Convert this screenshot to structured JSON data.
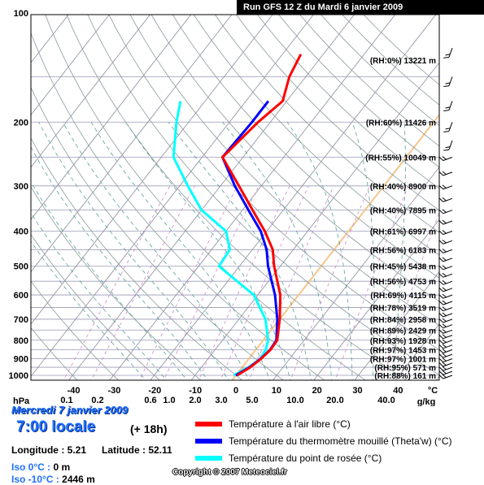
{
  "header": {
    "title": "Run GFS 12 Z du Mardi 6 janvier 2009"
  },
  "chart_data": {
    "type": "line",
    "title": "Run GFS 12 Z du Mardi 6 janvier 2009",
    "pressure_ticks": [
      "100",
      "200",
      "300",
      "400",
      "500",
      "600",
      "700",
      "800",
      "900",
      "1000"
    ],
    "temperature_ticks": [
      "-40",
      "-30",
      "-20",
      "-10",
      "0",
      "10",
      "20",
      "30",
      "40"
    ],
    "mixing_ratio_ticks": [
      "0.1",
      "0.2",
      "0.6",
      "1.0",
      "2.0",
      "3.0",
      "5.0",
      "10.0",
      "20.0",
      "40.0"
    ],
    "xlabel_left": "hPa",
    "xlabel_temp": "°C",
    "xlabel_mix": "g/kg",
    "series": [
      {
        "name": "Température à l'air libre (°C)",
        "color": "#ff0000",
        "points": [
          [
            1000,
            0.3
          ],
          [
            950,
            2.0
          ],
          [
            900,
            3.0
          ],
          [
            850,
            3.6
          ],
          [
            800,
            3.4
          ],
          [
            700,
            0.0
          ],
          [
            600,
            -4.5
          ],
          [
            500,
            -11.5
          ],
          [
            450,
            -15.0
          ],
          [
            400,
            -20.5
          ],
          [
            350,
            -27.5
          ],
          [
            300,
            -35.5
          ],
          [
            250,
            -45.0
          ],
          [
            200,
            -43.0
          ],
          [
            175,
            -41.0
          ],
          [
            150,
            -44.0
          ],
          [
            130,
            -45.5
          ]
        ]
      },
      {
        "name": "Température du thermomètre mouillé (Theta'w) (°C)",
        "color": "#0000ff",
        "points": [
          [
            1000,
            0.0
          ],
          [
            950,
            1.8
          ],
          [
            900,
            2.9
          ],
          [
            850,
            3.5
          ],
          [
            800,
            3.2
          ],
          [
            700,
            -0.6
          ],
          [
            600,
            -5.8
          ],
          [
            500,
            -13.0
          ],
          [
            450,
            -16.5
          ],
          [
            400,
            -21.5
          ],
          [
            350,
            -28.5
          ],
          [
            300,
            -36.5
          ],
          [
            250,
            -45.0
          ],
          [
            200,
            -44.5
          ],
          [
            175,
            -44.5
          ]
        ]
      },
      {
        "name": "Température du point de rosée (°C)",
        "color": "#00ffff",
        "points": [
          [
            1000,
            -0.5
          ],
          [
            950,
            1.6
          ],
          [
            900,
            2.8
          ],
          [
            850,
            2.4
          ],
          [
            800,
            1.2
          ],
          [
            700,
            -3.5
          ],
          [
            600,
            -11.0
          ],
          [
            500,
            -25.0
          ],
          [
            450,
            -25.5
          ],
          [
            400,
            -30.0
          ],
          [
            350,
            -40.0
          ],
          [
            300,
            -48.0
          ],
          [
            250,
            -57.0
          ],
          [
            200,
            -63.0
          ],
          [
            175,
            -66.0
          ]
        ]
      }
    ],
    "levels": [
      {
        "p": 135,
        "text": "(RH:0%) 13221 m"
      },
      {
        "p": 200,
        "text": "(RH:60%) 11426 m"
      },
      {
        "p": 250,
        "text": "(RH:55%) 10049 m"
      },
      {
        "p": 300,
        "text": "(RH:40%) 8900 m"
      },
      {
        "p": 350,
        "text": "(RH:40%) 7895 m"
      },
      {
        "p": 400,
        "text": "(RH:61%) 6997 m"
      },
      {
        "p": 450,
        "text": "(RH:56%) 6183 m"
      },
      {
        "p": 500,
        "text": "(RH:45%) 5438 m"
      },
      {
        "p": 550,
        "text": "(RH:56%) 4753 m"
      },
      {
        "p": 600,
        "text": "(RH:69%) 4115 m"
      },
      {
        "p": 650,
        "text": "(RH:78%) 3519 m"
      },
      {
        "p": 700,
        "text": "(RH:84%) 2958 m"
      },
      {
        "p": 750,
        "text": "(RH:89%) 2429 m"
      },
      {
        "p": 800,
        "text": "(RH:93%) 1928 m"
      },
      {
        "p": 850,
        "text": "(RH:97%) 1453 m"
      },
      {
        "p": 900,
        "text": "(RH:97%) 1001 m"
      },
      {
        "p": 950,
        "text": "(RH:95%) 571 m"
      },
      {
        "p": 1000,
        "text": "(RH:88%) 161 m"
      }
    ],
    "dry_adiabat_color": "#8a9a9a",
    "moist_adiabat_color": "#5aa09a",
    "isotherm_color": "#8a8aa0",
    "mixing_ratio_color": "#cc88cc",
    "zero_isotherm_color": "#f4c58a"
  },
  "info": {
    "date": "Mercredi 7 janvier 2009",
    "time": "7:00 locale",
    "offset": "(+ 18h)",
    "longitude_label": "Longitude : 5.21",
    "latitude_label": "Latitude : 52.11",
    "iso0_label": "Iso 0°C : ",
    "iso0_value": "0 m",
    "iso10_label": "Iso -10°C : ",
    "iso10_value": "2446 m"
  },
  "legend": [
    {
      "label": "Température à l'air libre (°C)",
      "color": "#ff0000"
    },
    {
      "label": "Température du thermomètre mouillé (Theta'w) (°C)",
      "color": "#0000ff"
    },
    {
      "label": "Température du point de rosée (°C)",
      "color": "#00ffff"
    }
  ],
  "copyright": "Copyright © 2007 Meteociel.fr"
}
